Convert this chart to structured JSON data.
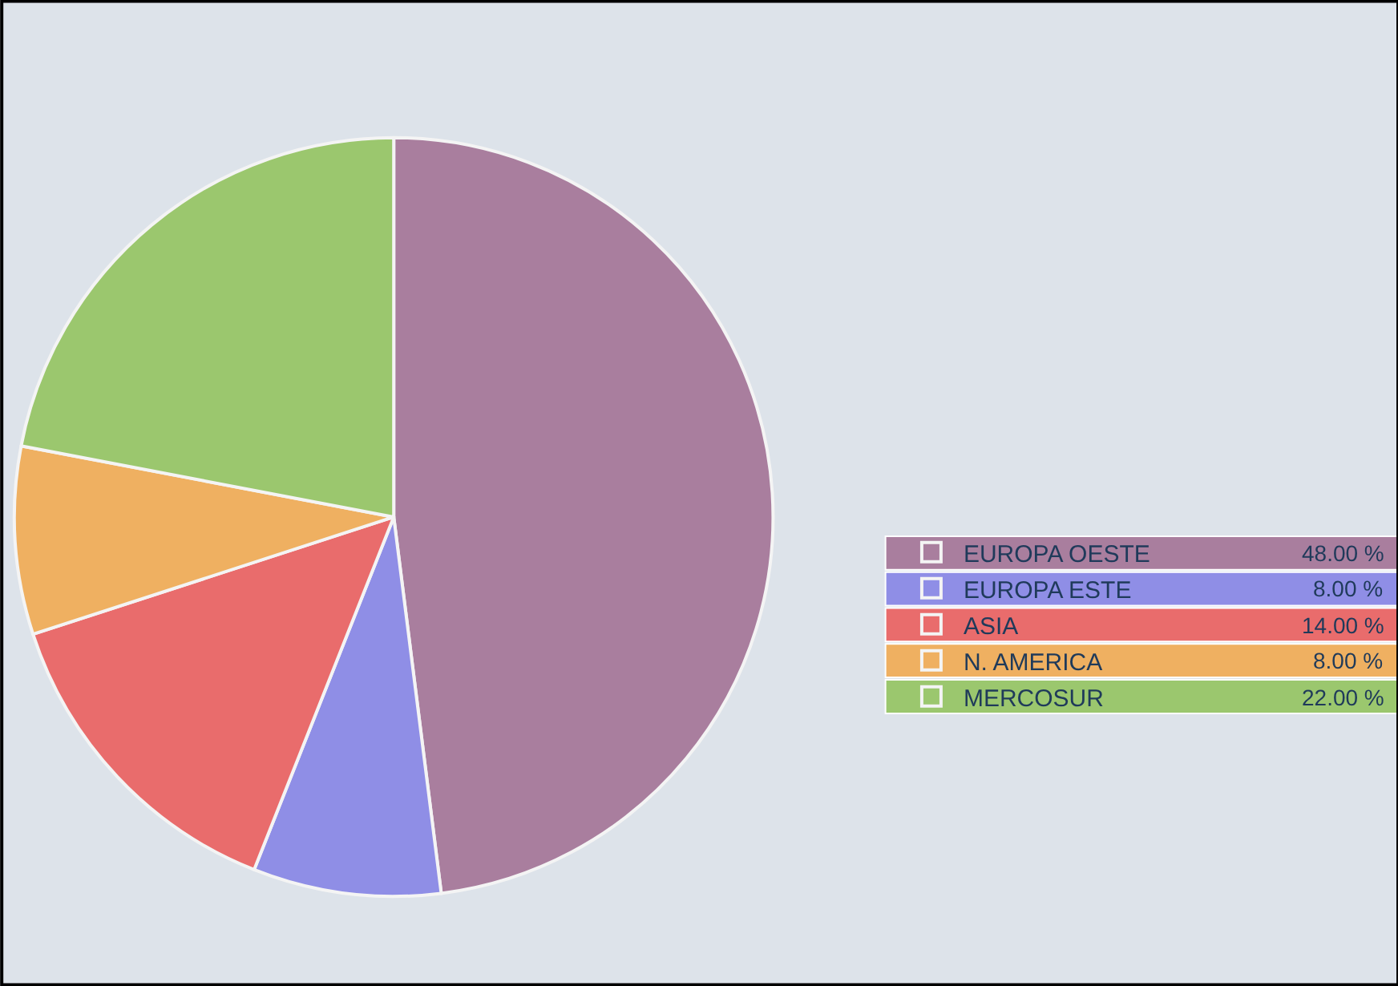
{
  "chart_data": {
    "type": "pie",
    "categories": [
      "EUROPA OESTE",
      "EUROPA ESTE",
      "ASIA",
      "N. AMERICA",
      "MERCOSUR"
    ],
    "values": [
      48,
      8,
      14,
      8,
      22
    ],
    "value_labels": [
      "48.00 %",
      "8.00 %",
      "14.00 %",
      "8.00 %",
      "22.00 %"
    ],
    "colors": [
      "#a97e9e",
      "#8f8ee6",
      "#e96c6c",
      "#efb061",
      "#9bc76e"
    ],
    "legend": "right"
  }
}
